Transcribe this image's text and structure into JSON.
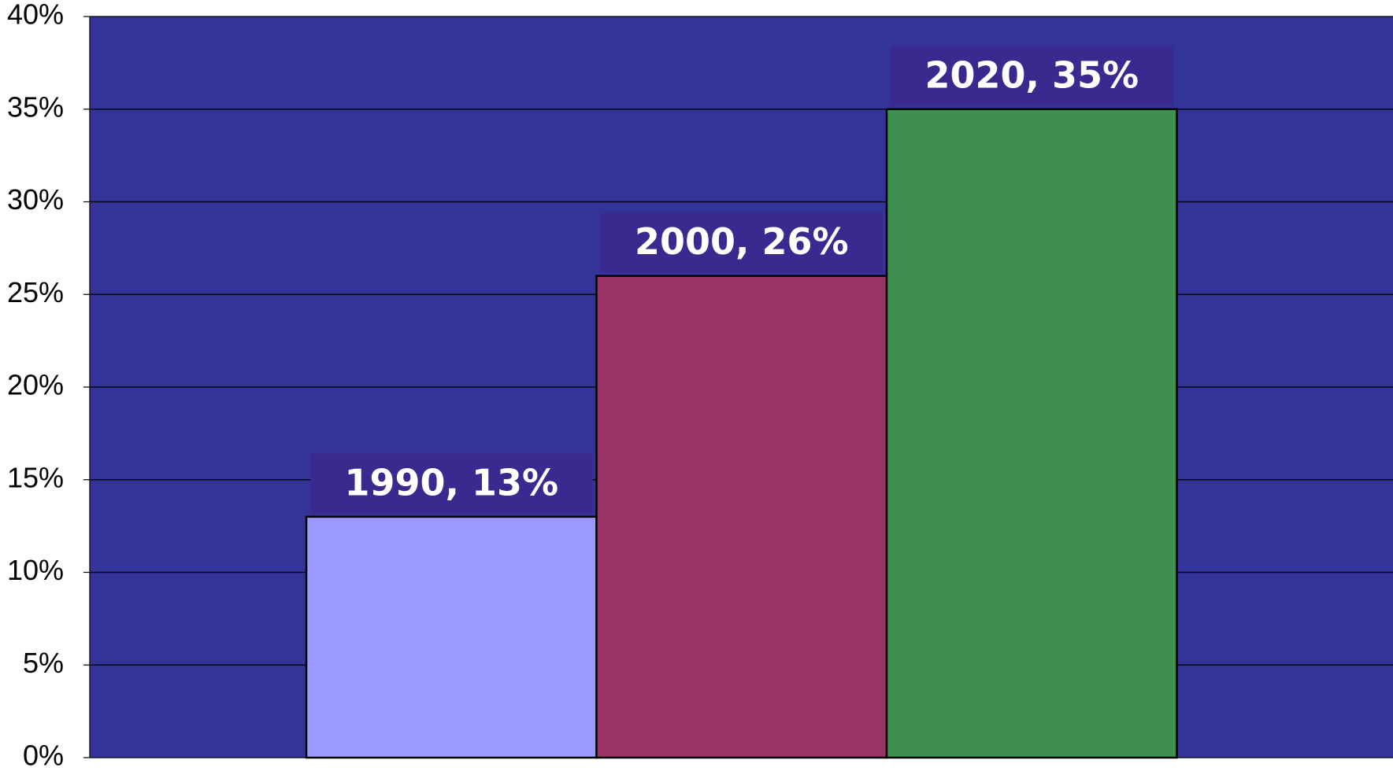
{
  "chart_data": {
    "type": "bar",
    "categories": [
      "1990",
      "2000",
      "2020"
    ],
    "values": [
      13,
      26,
      35
    ],
    "value_labels": [
      "1990, 13%",
      "2000, 26%",
      "2020, 35%"
    ],
    "colors": [
      "#9999ff",
      "#993366",
      "#3f8f4f"
    ],
    "ylim": [
      0,
      40
    ],
    "yticks": [
      {
        "value": 0,
        "label": "0%"
      },
      {
        "value": 5,
        "label": "5%"
      },
      {
        "value": 10,
        "label": "10%"
      },
      {
        "value": 15,
        "label": "15%"
      },
      {
        "value": 20,
        "label": "20%"
      },
      {
        "value": 25,
        "label": "25%"
      },
      {
        "value": 30,
        "label": "30%"
      },
      {
        "value": 35,
        "label": "35%"
      },
      {
        "value": 40,
        "label": "40%"
      }
    ],
    "grid": true,
    "plot_background": "#333399",
    "label_background": "#3a2a8f"
  }
}
